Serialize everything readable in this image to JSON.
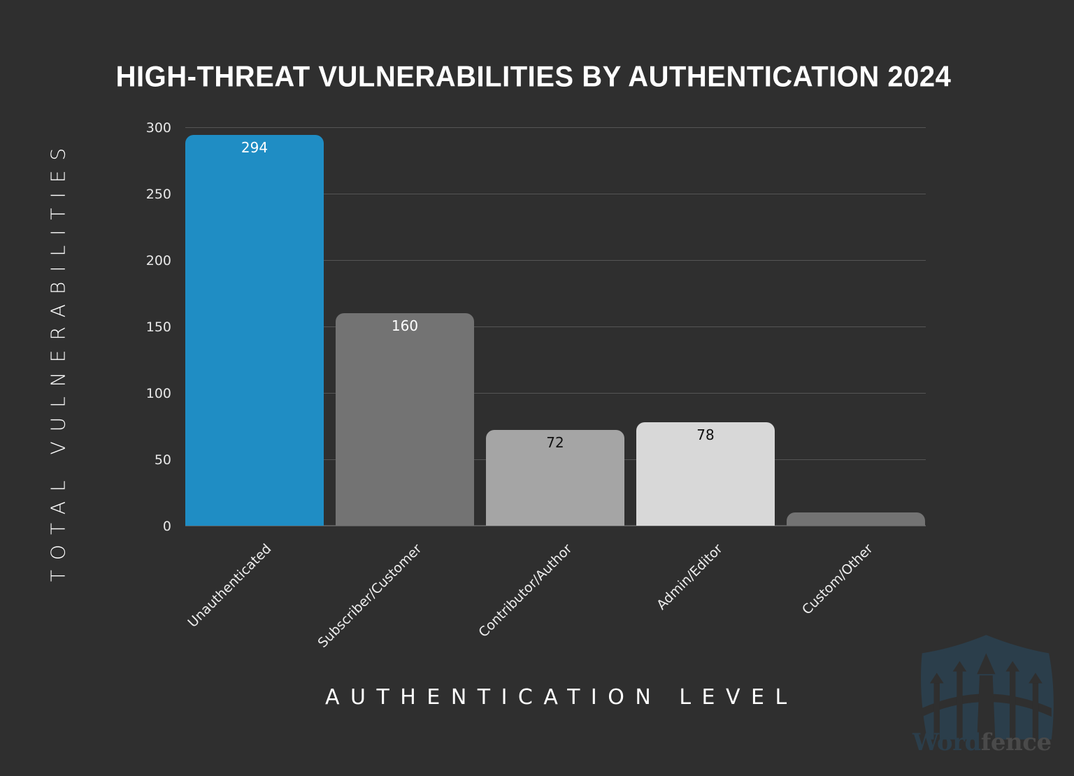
{
  "chart_data": {
    "type": "bar",
    "title": "HIGH-THREAT VULNERABILITIES BY AUTHENTICATION 2024",
    "xlabel": "AUTHENTICATION LEVEL",
    "ylabel": "TOTAL VULNERABILITIES",
    "categories": [
      "Unauthenticated",
      "Subscriber/Customer",
      "Contributor/Author",
      "Admin/Editor",
      "Custom/Other"
    ],
    "values": [
      294,
      160,
      72,
      78,
      10
    ],
    "data_labels": [
      "294",
      "160",
      "72",
      "78",
      ""
    ],
    "bar_colors": [
      "#1f8dc4",
      "#737373",
      "#a5a5a5",
      "#d8d8d8",
      "#737373"
    ],
    "label_colors": [
      "#ffffff",
      "#ffffff",
      "#111111",
      "#111111",
      "#ffffff"
    ],
    "ylim": [
      0,
      300
    ],
    "yticks": [
      0,
      50,
      100,
      150,
      200,
      250,
      300
    ],
    "grid": true,
    "legend": null
  },
  "watermark": {
    "brand_part1": "Word",
    "brand_part2": "fence",
    "color_part1": "#2b3e4b",
    "color_part2": "#4a4a4a"
  }
}
